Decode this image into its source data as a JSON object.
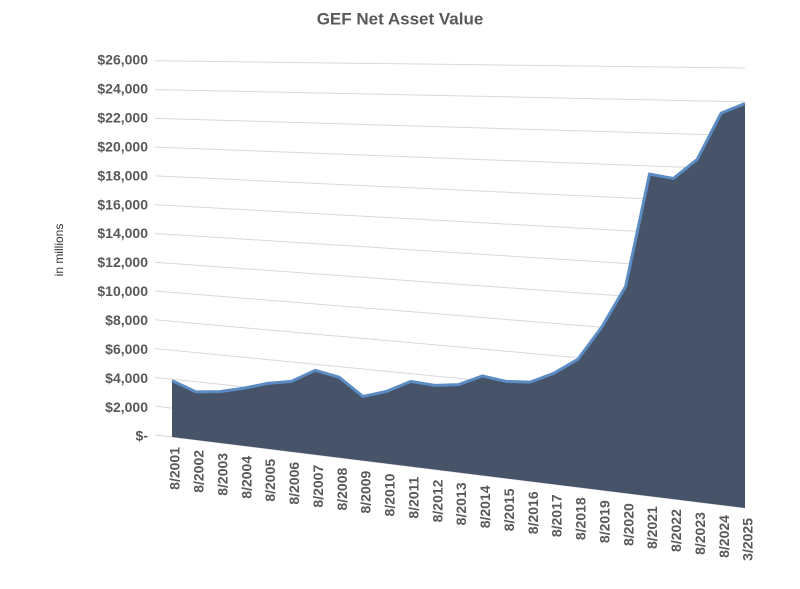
{
  "chart_data": {
    "type": "area",
    "title": "GEF Net Asset Value",
    "y_label": "in millions",
    "categories": [
      "8/2001",
      "8/2002",
      "8/2003",
      "8/2004",
      "8/2005",
      "8/2006",
      "8/2007",
      "8/2008",
      "8/2009",
      "8/2010",
      "8/2011",
      "8/2012",
      "8/2013",
      "8/2014",
      "8/2015",
      "8/2016",
      "8/2017",
      "8/2018",
      "8/2019",
      "8/2020",
      "8/2021",
      "8/2022",
      "8/2023",
      "8/2024",
      "3/2025"
    ],
    "values": [
      3900,
      3300,
      3500,
      3900,
      4400,
      4700,
      5600,
      5300,
      4200,
      4700,
      5500,
      5400,
      5600,
      6300,
      6100,
      6200,
      6900,
      7900,
      10000,
      12600,
      19500,
      19300,
      20500,
      23300,
      23900
    ],
    "color": "#465368",
    "edge_color": "#5b8cc4",
    "ylim": [
      0,
      26000
    ],
    "yticks": [
      {
        "value": 0,
        "label": "$-"
      },
      {
        "value": 2000,
        "label": "$2,000"
      },
      {
        "value": 4000,
        "label": "$4,000"
      },
      {
        "value": 6000,
        "label": "$6,000"
      },
      {
        "value": 8000,
        "label": "$8,000"
      },
      {
        "value": 10000,
        "label": "$10,000"
      },
      {
        "value": 12000,
        "label": "$12,000"
      },
      {
        "value": 14000,
        "label": "$14,000"
      },
      {
        "value": 16000,
        "label": "$16,000"
      },
      {
        "value": 18000,
        "label": "$18,000"
      },
      {
        "value": 20000,
        "label": "$20,000"
      },
      {
        "value": 22000,
        "label": "$22,000"
      },
      {
        "value": 24000,
        "label": "$24,000"
      },
      {
        "value": 26000,
        "label": "$26,000"
      }
    ],
    "grid": true
  }
}
